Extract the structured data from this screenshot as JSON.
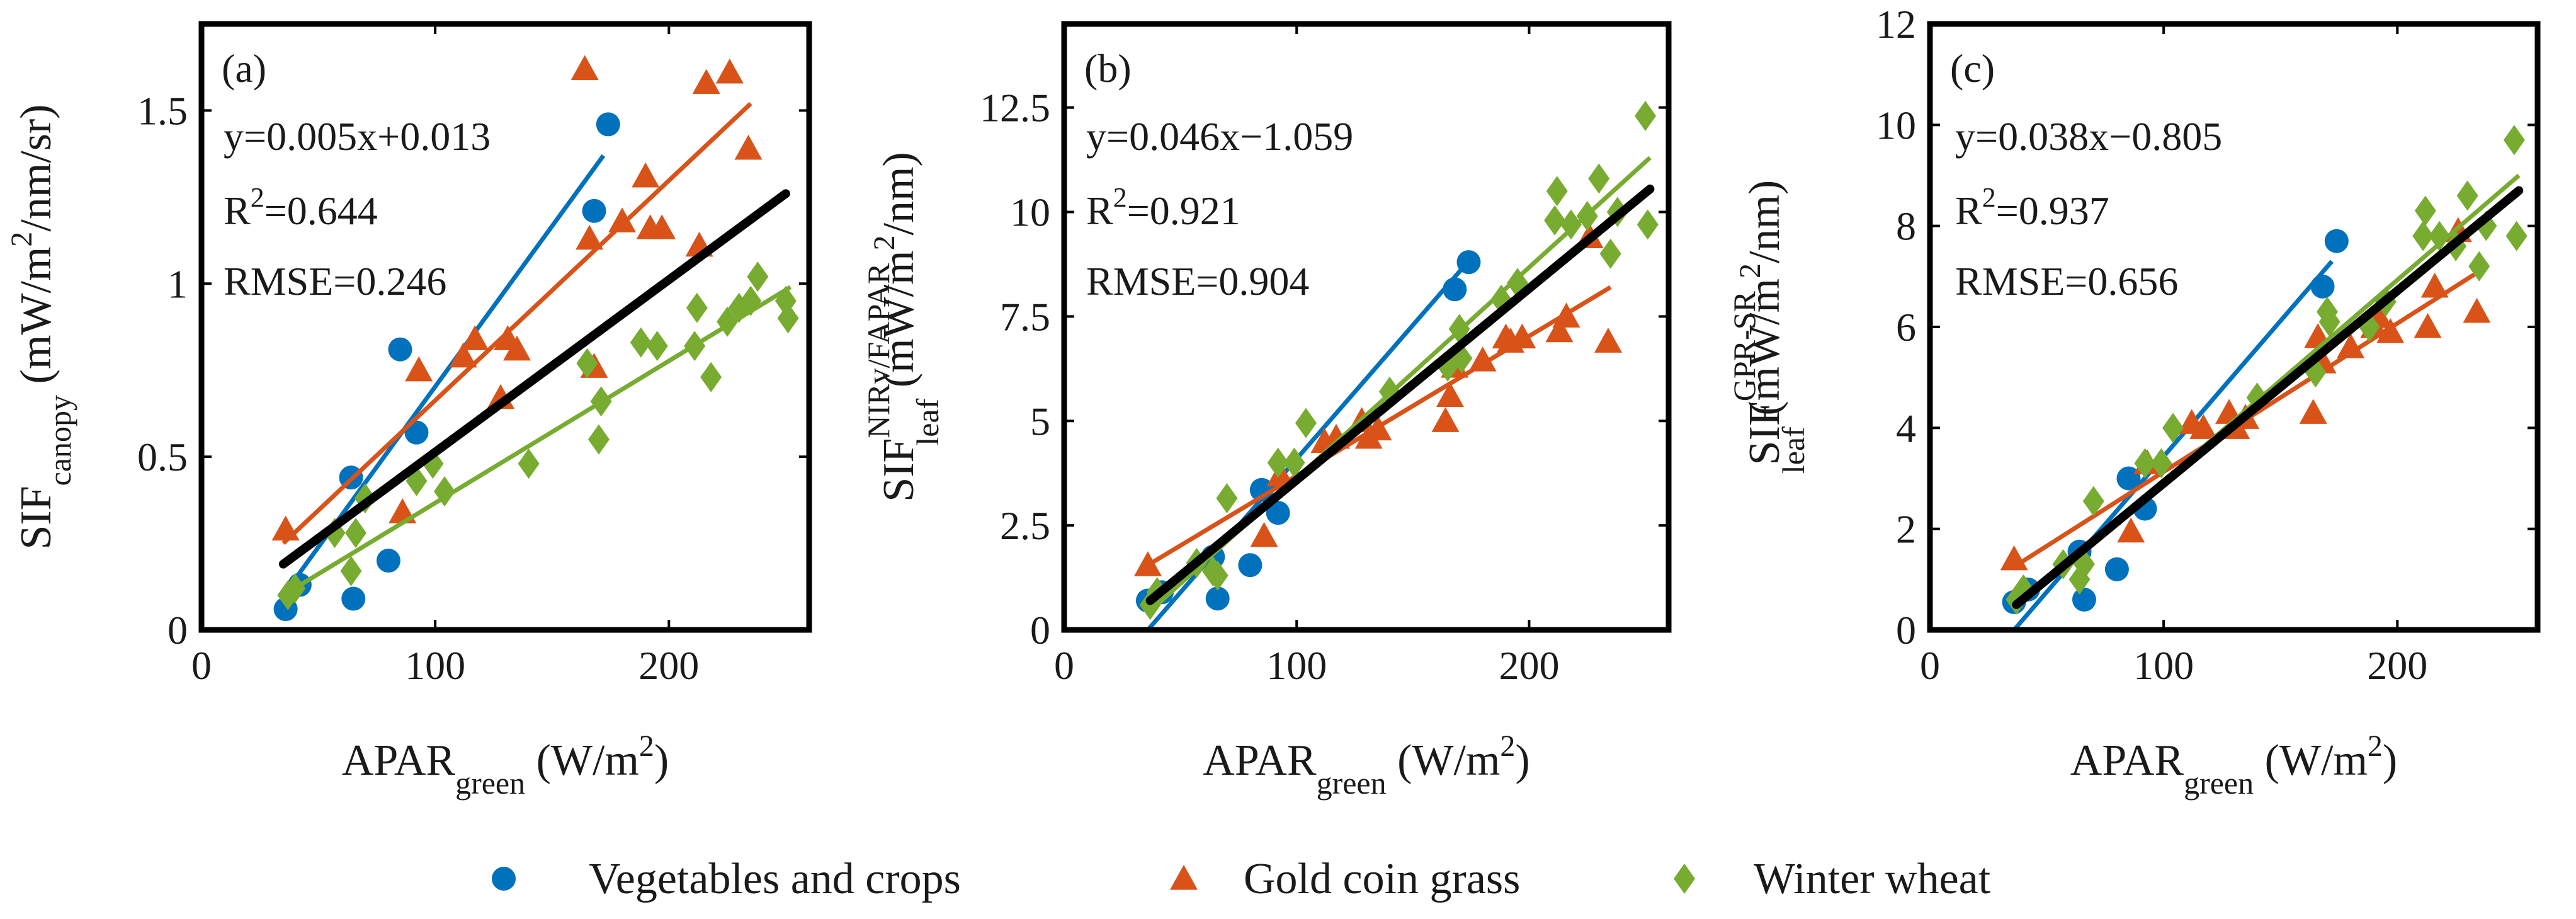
{
  "colors": {
    "vegetables": "#0072BD",
    "gold_coin": "#D95319",
    "wheat": "#77AC30",
    "overall": "#000000"
  },
  "legend": [
    {
      "key": "vegetables",
      "marker": "circle",
      "label": "Vegetables and crops"
    },
    {
      "key": "gold_coin",
      "marker": "triangle",
      "label": "Gold coin grass"
    },
    {
      "key": "wheat",
      "marker": "diamond",
      "label": "Winter wheat"
    }
  ],
  "chart_data": [
    {
      "type": "scatter",
      "panel_label": "(a)",
      "xlabel": {
        "main": "APAR",
        "sub": "green",
        "unit": " (W/m",
        "sup": "2",
        "close": ")"
      },
      "ylabel": {
        "main": "SIF",
        "sub": "canopy",
        "sup": "",
        "unit": " (mW/m",
        "unit_sup": "2",
        "unit_tail": "/nm/sr)"
      },
      "xlim": [
        0,
        260
      ],
      "ylim": [
        0,
        1.75
      ],
      "xticks": [
        0,
        100,
        200
      ],
      "xtick_labels": [
        "0",
        "100",
        "200"
      ],
      "yticks": [
        0,
        0.5,
        1,
        1.5
      ],
      "ytick_labels": [
        "0",
        "0.5",
        "1",
        "1.5"
      ],
      "stats": {
        "equation": "y=0.005x+0.013",
        "r2_prefix": "R",
        "r2_sup": "2",
        "r2_value": "=0.644",
        "rmse": "RMSE=0.246"
      },
      "series": [
        {
          "key": "vegetables",
          "points": [
            [
              36,
              0.06
            ],
            [
              42,
              0.13
            ],
            [
              64,
              0.44
            ],
            [
              65,
              0.09
            ],
            [
              80,
              0.2
            ],
            [
              85,
              0.81
            ],
            [
              92,
              0.57
            ],
            [
              168,
              1.21
            ],
            [
              174,
              1.46
            ]
          ],
          "fit": [
            [
              35,
              0.1
            ],
            [
              172,
              1.37
            ]
          ]
        },
        {
          "key": "gold_coin",
          "points": [
            [
              36,
              0.29
            ],
            [
              86,
              0.34
            ],
            [
              93,
              0.75
            ],
            [
              112,
              0.79
            ],
            [
              117,
              0.84
            ],
            [
              128,
              0.67
            ],
            [
              131,
              0.84
            ],
            [
              135,
              0.81
            ],
            [
              164,
              1.62
            ],
            [
              166,
              1.13
            ],
            [
              168,
              0.76
            ],
            [
              180,
              1.18
            ],
            [
              190,
              1.31
            ],
            [
              192,
              1.16
            ],
            [
              197,
              1.16
            ],
            [
              213,
              1.11
            ],
            [
              216,
              1.58
            ],
            [
              226,
              1.61
            ],
            [
              234,
              1.39
            ]
          ],
          "fit": [
            [
              35,
              0.25
            ],
            [
              235,
              1.52
            ]
          ]
        },
        {
          "key": "wheat",
          "points": [
            [
              37,
              0.1
            ],
            [
              40,
              0.12
            ],
            [
              57,
              0.28
            ],
            [
              64,
              0.17
            ],
            [
              66,
              0.28
            ],
            [
              70,
              0.38
            ],
            [
              92,
              0.43
            ],
            [
              99,
              0.48
            ],
            [
              104,
              0.4
            ],
            [
              140,
              0.48
            ],
            [
              165,
              0.77
            ],
            [
              170,
              0.55
            ],
            [
              171,
              0.66
            ],
            [
              188,
              0.83
            ],
            [
              195,
              0.82
            ],
            [
              211,
              0.82
            ],
            [
              212,
              0.93
            ],
            [
              218,
              0.73
            ],
            [
              225,
              0.89
            ],
            [
              230,
              0.93
            ],
            [
              235,
              0.95
            ],
            [
              238,
              1.02
            ],
            [
              250,
              0.95
            ],
            [
              251,
              0.9
            ]
          ],
          "fit": [
            [
              35,
              0.1
            ],
            [
              252,
              0.99
            ]
          ]
        }
      ],
      "overall_fit": [
        [
          35,
          0.19
        ],
        [
          250,
          1.26
        ]
      ]
    },
    {
      "type": "scatter",
      "panel_label": "(b)",
      "xlabel": {
        "main": "APAR",
        "sub": "green",
        "unit": " (W/m",
        "sup": "2",
        "close": ")"
      },
      "ylabel": {
        "main": "SIF",
        "sub": "leaf",
        "sup": "NIRv/FAPAR",
        "unit": " (mW/m",
        "unit_sup": "2",
        "unit_tail": "/nm)"
      },
      "xlim": [
        0,
        260
      ],
      "ylim": [
        0,
        14.5
      ],
      "xticks": [
        0,
        100,
        200
      ],
      "xtick_labels": [
        "0",
        "100",
        "200"
      ],
      "yticks": [
        0,
        2.5,
        5,
        7.5,
        10,
        12.5
      ],
      "ytick_labels": [
        "0",
        "2.5",
        "5",
        "7.5",
        "10",
        "12.5"
      ],
      "stats": {
        "equation": "y=0.046x−1.059",
        "r2_prefix": "R",
        "r2_sup": "2",
        "r2_value": "=0.921",
        "rmse": "RMSE=0.904"
      },
      "series": [
        {
          "key": "vegetables",
          "points": [
            [
              36,
              0.7
            ],
            [
              42,
              0.9
            ],
            [
              64,
              1.75
            ],
            [
              66,
              0.75
            ],
            [
              80,
              1.55
            ],
            [
              85,
              3.35
            ],
            [
              92,
              2.8
            ],
            [
              168,
              8.15
            ],
            [
              174,
              8.8
            ]
          ],
          "fit": [
            [
              36,
              0.0
            ],
            [
              172,
              8.7
            ]
          ]
        },
        {
          "key": "gold_coin",
          "points": [
            [
              36,
              1.55
            ],
            [
              86,
              2.25
            ],
            [
              93,
              3.7
            ],
            [
              112,
              4.5
            ],
            [
              117,
              4.6
            ],
            [
              128,
              5.0
            ],
            [
              131,
              4.6
            ],
            [
              135,
              4.8
            ],
            [
              164,
              5.0
            ],
            [
              166,
              5.6
            ],
            [
              168,
              6.3
            ],
            [
              180,
              6.45
            ],
            [
              190,
              7.0
            ],
            [
              192,
              6.9
            ],
            [
              197,
              7.0
            ],
            [
              213,
              7.15
            ],
            [
              216,
              7.5
            ],
            [
              226,
              9.4
            ],
            [
              234,
              6.9
            ]
          ],
          "fit": [
            [
              36,
              1.55
            ],
            [
              235,
              8.2
            ]
          ]
        },
        {
          "key": "wheat",
          "points": [
            [
              37,
              0.6
            ],
            [
              40,
              0.9
            ],
            [
              57,
              1.6
            ],
            [
              64,
              1.4
            ],
            [
              66,
              1.3
            ],
            [
              70,
              3.15
            ],
            [
              92,
              4.0
            ],
            [
              99,
              4.0
            ],
            [
              104,
              4.95
            ],
            [
              140,
              5.7
            ],
            [
              165,
              6.3
            ],
            [
              170,
              7.2
            ],
            [
              171,
              6.5
            ],
            [
              188,
              7.9
            ],
            [
              195,
              8.3
            ],
            [
              211,
              9.8
            ],
            [
              212,
              10.5
            ],
            [
              218,
              9.7
            ],
            [
              225,
              9.9
            ],
            [
              230,
              10.8
            ],
            [
              235,
              9.0
            ],
            [
              238,
              10.0
            ],
            [
              250,
              12.3
            ],
            [
              251,
              9.7
            ]
          ],
          "fit": [
            [
              36,
              0.4
            ],
            [
              252,
              11.3
            ]
          ]
        }
      ],
      "overall_fit": [
        [
          37,
          0.7
        ],
        [
          252,
          10.55
        ]
      ]
    },
    {
      "type": "scatter",
      "panel_label": "(c)",
      "xlabel": {
        "main": "APAR",
        "sub": "green",
        "unit": " (W/m",
        "sup": "2",
        "close": ")"
      },
      "ylabel": {
        "main": "SIF",
        "sub": "leaf",
        "sup": "GPR-SR",
        "unit": " (mW/m",
        "unit_sup": "2",
        "unit_tail": "/nm)"
      },
      "xlim": [
        0,
        260
      ],
      "ylim": [
        0,
        12
      ],
      "xticks": [
        0,
        100,
        200
      ],
      "xtick_labels": [
        "0",
        "100",
        "200"
      ],
      "yticks": [
        0,
        2,
        4,
        6,
        8,
        10,
        12
      ],
      "ytick_labels": [
        "0",
        "2",
        "4",
        "6",
        "8",
        "10",
        "12"
      ],
      "stats": {
        "equation": "y=0.038x−0.805",
        "r2_prefix": "R",
        "r2_sup": "2",
        "r2_value": "=0.937",
        "rmse": "RMSE=0.656"
      },
      "series": [
        {
          "key": "vegetables",
          "points": [
            [
              36,
              0.55
            ],
            [
              42,
              0.8
            ],
            [
              64,
              1.55
            ],
            [
              66,
              0.6
            ],
            [
              80,
              1.2
            ],
            [
              85,
              3.0
            ],
            [
              92,
              2.4
            ],
            [
              168,
              6.8
            ],
            [
              174,
              7.7
            ]
          ],
          "fit": [
            [
              36,
              0.0
            ],
            [
              172,
              7.3
            ]
          ]
        },
        {
          "key": "gold_coin",
          "points": [
            [
              36,
              1.4
            ],
            [
              86,
              1.95
            ],
            [
              93,
              3.3
            ],
            [
              112,
              4.1
            ],
            [
              117,
              4.0
            ],
            [
              128,
              4.3
            ],
            [
              131,
              4.0
            ],
            [
              135,
              4.2
            ],
            [
              164,
              4.3
            ],
            [
              166,
              5.8
            ],
            [
              168,
              5.3
            ],
            [
              180,
              5.6
            ],
            [
              190,
              6.0
            ],
            [
              192,
              6.2
            ],
            [
              197,
              5.9
            ],
            [
              213,
              6.0
            ],
            [
              216,
              6.8
            ],
            [
              226,
              7.9
            ],
            [
              234,
              6.3
            ]
          ],
          "fit": [
            [
              36,
              1.25
            ],
            [
              235,
              7.1
            ]
          ]
        },
        {
          "key": "wheat",
          "points": [
            [
              37,
              0.6
            ],
            [
              40,
              0.8
            ],
            [
              57,
              1.3
            ],
            [
              64,
              1.0
            ],
            [
              66,
              1.3
            ],
            [
              70,
              2.55
            ],
            [
              92,
              3.3
            ],
            [
              99,
              3.3
            ],
            [
              104,
              4.0
            ],
            [
              140,
              4.6
            ],
            [
              165,
              5.1
            ],
            [
              170,
              6.3
            ],
            [
              171,
              6.1
            ],
            [
              188,
              6.0
            ],
            [
              195,
              6.5
            ],
            [
              211,
              7.8
            ],
            [
              212,
              8.3
            ],
            [
              218,
              7.8
            ],
            [
              225,
              7.6
            ],
            [
              230,
              8.6
            ],
            [
              235,
              7.2
            ],
            [
              238,
              8.0
            ],
            [
              250,
              9.7
            ],
            [
              251,
              7.8
            ]
          ],
          "fit": [
            [
              36,
              0.4
            ],
            [
              252,
              9.0
            ]
          ]
        }
      ],
      "overall_fit": [
        [
          37,
          0.5
        ],
        [
          252,
          8.7
        ]
      ]
    }
  ]
}
